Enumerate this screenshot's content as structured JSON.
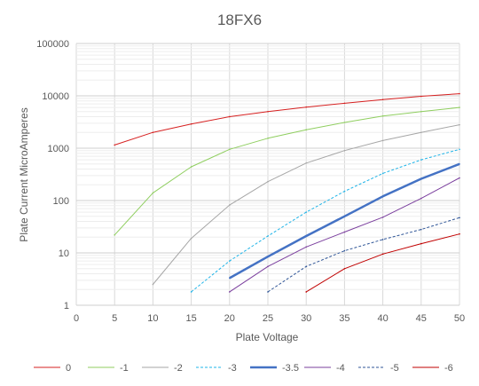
{
  "chart_data": {
    "type": "line",
    "title": "18FX6",
    "xlabel": "Plate Voltage",
    "ylabel": "Plate Current MicroAmperes",
    "x_ticks": [
      "0",
      "5",
      "10",
      "15",
      "20",
      "25",
      "30",
      "35",
      "40",
      "45",
      "50"
    ],
    "y_ticks": [
      "1",
      "10",
      "100",
      "1000",
      "10000",
      "100000"
    ],
    "xlim": [
      0,
      50
    ],
    "ylim": [
      1,
      100000
    ],
    "y_scale": "log",
    "grid": true,
    "legend_position": "bottom",
    "series": [
      {
        "name": "0",
        "color": "#d62020",
        "dash": "solid",
        "width": 1,
        "x": [
          5,
          10,
          15,
          20,
          25,
          30,
          35,
          40,
          45,
          50
        ],
        "y": [
          1150,
          2000,
          2900,
          4000,
          5000,
          6100,
          7200,
          8500,
          9800,
          11000
        ]
      },
      {
        "name": "-1",
        "color": "#8fce5f",
        "dash": "solid",
        "width": 1,
        "x": [
          5,
          10,
          15,
          20,
          25,
          30,
          35,
          40,
          45,
          50
        ],
        "y": [
          22,
          140,
          440,
          950,
          1550,
          2250,
          3100,
          4100,
          5000,
          6000
        ]
      },
      {
        "name": "-2",
        "color": "#a6a6a6",
        "dash": "solid",
        "width": 1,
        "x": [
          10,
          15,
          20,
          25,
          30,
          35,
          40,
          45,
          50
        ],
        "y": [
          2.5,
          19,
          82,
          230,
          520,
          900,
          1400,
          2000,
          2800
        ]
      },
      {
        "name": "-3",
        "color": "#1fb4e8",
        "dash": "dashed",
        "width": 1,
        "x": [
          15,
          20,
          25,
          30,
          35,
          40,
          45,
          50
        ],
        "y": [
          1.8,
          7,
          21,
          60,
          150,
          330,
          600,
          950
        ]
      },
      {
        "name": "-3.5",
        "color": "#4472c4",
        "dash": "solid",
        "width": 2.5,
        "x": [
          20,
          25,
          30,
          35,
          40,
          45,
          50
        ],
        "y": [
          3.3,
          8.5,
          21,
          50,
          120,
          260,
          500
        ]
      },
      {
        "name": "-4",
        "color": "#7b3f9e",
        "dash": "solid",
        "width": 1,
        "x": [
          20,
          25,
          30,
          35,
          40,
          45,
          50
        ],
        "y": [
          1.8,
          5.5,
          13,
          25,
          48,
          110,
          270
        ]
      },
      {
        "name": "-5",
        "color": "#2f5597",
        "dash": "dashed",
        "width": 1,
        "x": [
          25,
          30,
          35,
          40,
          45,
          50
        ],
        "y": [
          1.8,
          5.5,
          11,
          18,
          28,
          47
        ]
      },
      {
        "name": "-6",
        "color": "#c00000",
        "dash": "solid",
        "width": 1,
        "x": [
          30,
          35,
          40,
          45,
          50
        ],
        "y": [
          1.8,
          5,
          9.5,
          15,
          23
        ]
      }
    ]
  }
}
